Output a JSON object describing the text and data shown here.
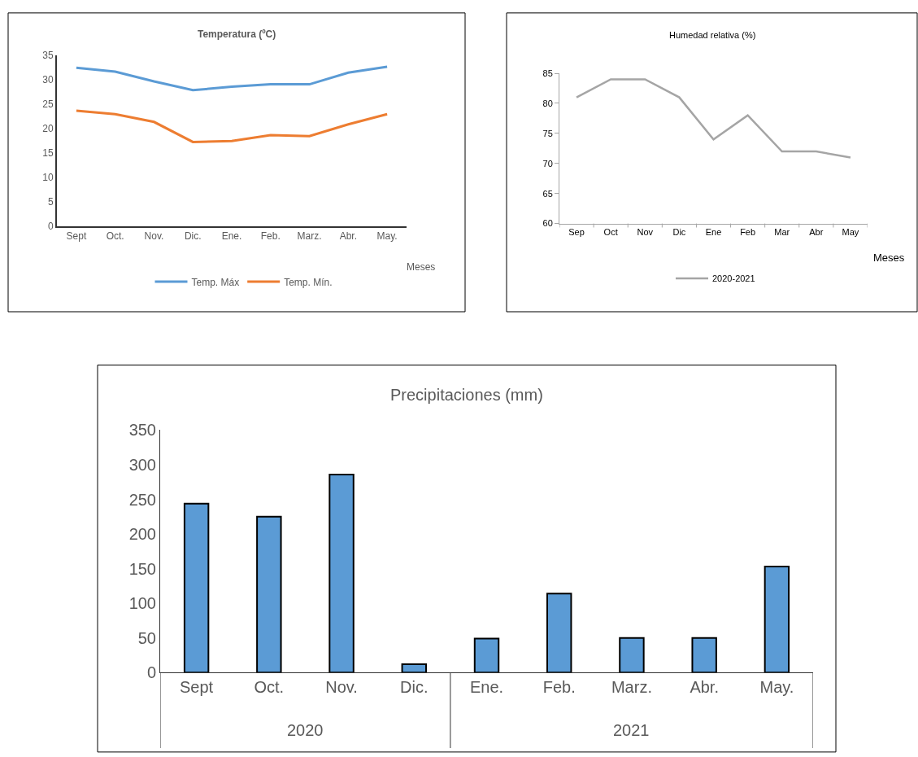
{
  "chart_data": [
    {
      "type": "line",
      "title": "Temperatura (ºC)",
      "xlabel": "Meses",
      "categories": [
        "Sept",
        "Oct.",
        "Nov.",
        "Dic.",
        "Ene.",
        "Feb.",
        "Marz.",
        "Abr.",
        "May."
      ],
      "series": [
        {
          "name": "Temp. Máx",
          "color": "#5b9bd5",
          "values": [
            32.4,
            31.6,
            29.6,
            27.8,
            28.5,
            29.0,
            29.0,
            31.4,
            32.6
          ]
        },
        {
          "name": "Temp. Mín.",
          "color": "#ed7d31",
          "values": [
            23.6,
            22.9,
            21.3,
            17.2,
            17.4,
            18.6,
            18.4,
            20.8,
            22.9
          ]
        }
      ],
      "ylim": [
        0,
        35
      ],
      "yticks": [
        0,
        5,
        10,
        15,
        20,
        25,
        30,
        35
      ],
      "grid": false,
      "legend": "bottom"
    },
    {
      "type": "line",
      "title": "Humedad relativa (%)",
      "xlabel": "Meses",
      "categories": [
        "Sep",
        "Oct",
        "Nov",
        "Dic",
        "Ene",
        "Feb",
        "Mar",
        "Abr",
        "May"
      ],
      "series": [
        {
          "name": "2020-2021",
          "color": "#a5a5a5",
          "values": [
            81,
            84,
            84,
            81,
            74,
            78,
            72,
            72,
            71
          ]
        }
      ],
      "ylim": [
        60,
        85
      ],
      "yticks": [
        60,
        65,
        70,
        75,
        80,
        85
      ],
      "grid": false,
      "legend": "bottom"
    },
    {
      "type": "bar",
      "title": "Precipitaciones (mm)",
      "categories": [
        "Sept",
        "Oct.",
        "Nov.",
        "Dic.",
        "Ene.",
        "Feb.",
        "Marz.",
        "Abr.",
        "May."
      ],
      "values": [
        244,
        225,
        286,
        12,
        49,
        114,
        50,
        50,
        153
      ],
      "color": "#5b9bd5",
      "ylim": [
        0,
        350
      ],
      "yticks": [
        0,
        50,
        100,
        150,
        200,
        250,
        300,
        350
      ],
      "grid": false,
      "annotations": [
        "2020",
        "2021"
      ]
    }
  ]
}
